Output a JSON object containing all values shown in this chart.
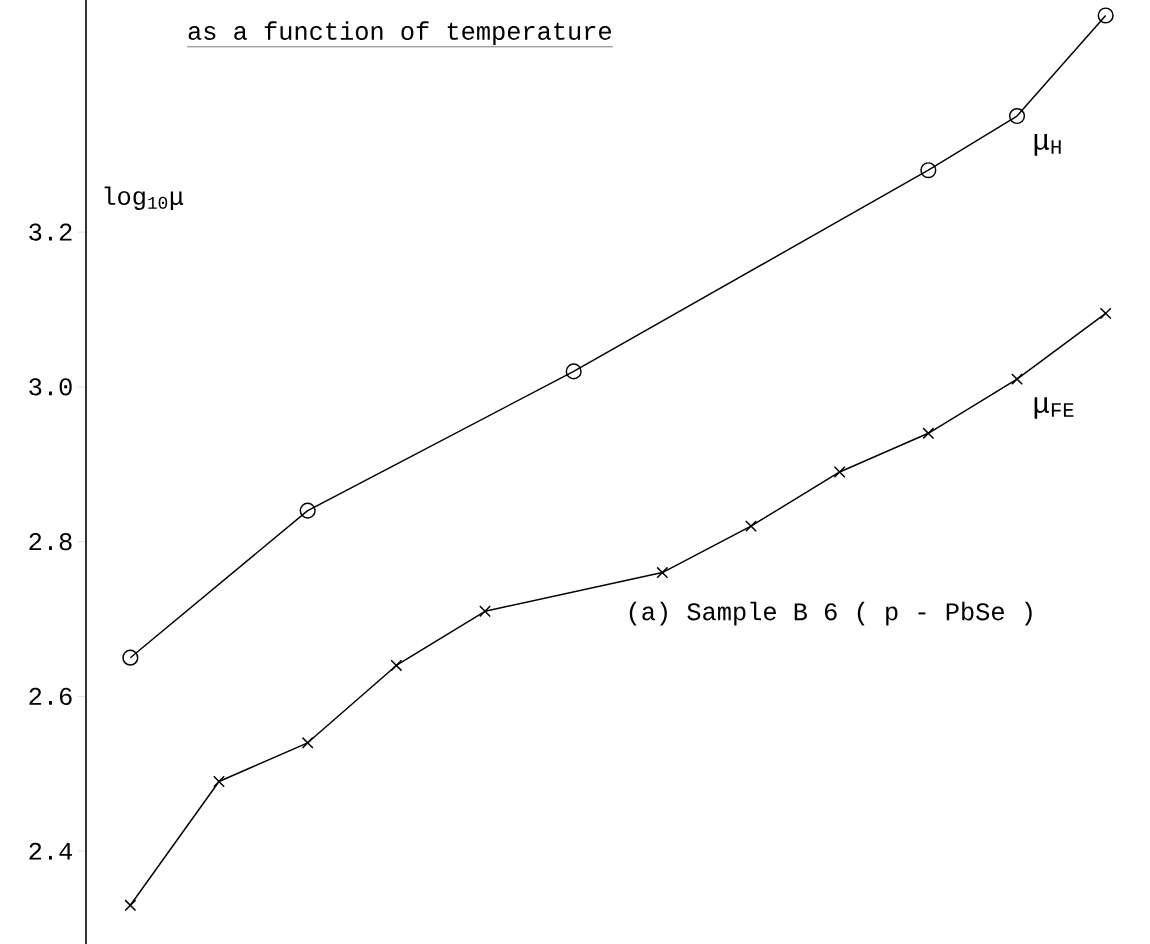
{
  "chart_data": {
    "type": "line",
    "title": "as a function of temperature",
    "ylabel": "log$_{10}$μ",
    "categories": [
      null,
      null,
      null,
      null,
      null,
      null,
      null,
      null,
      null,
      null,
      null,
      null
    ],
    "series": [
      {
        "name": "μ$_{H}$",
        "color": "#000000",
        "marker": "circle",
        "values": [
          2.65,
          null,
          2.84,
          null,
          null,
          3.02,
          null,
          null,
          null,
          3.28,
          3.35,
          3.48
        ]
      },
      {
        "name": "μ$_{FE}$",
        "color": "#000000",
        "marker": "cross",
        "values": [
          2.33,
          2.49,
          2.54,
          2.64,
          2.71,
          null,
          2.76,
          2.82,
          2.89,
          2.94,
          3.01,
          3.095
        ]
      }
    ],
    "ylim": [
      2.28,
      3.5
    ],
    "yticks": [
      2.4,
      2.6,
      2.8,
      {
        "value": 3,
        "label": "3.0"
      },
      3.2
    ],
    "tick_labels": "y",
    "grid": false,
    "line_style": "solid",
    "annotations": [
      "(a) Sample B 6 ( p - PbSe )"
    ]
  }
}
